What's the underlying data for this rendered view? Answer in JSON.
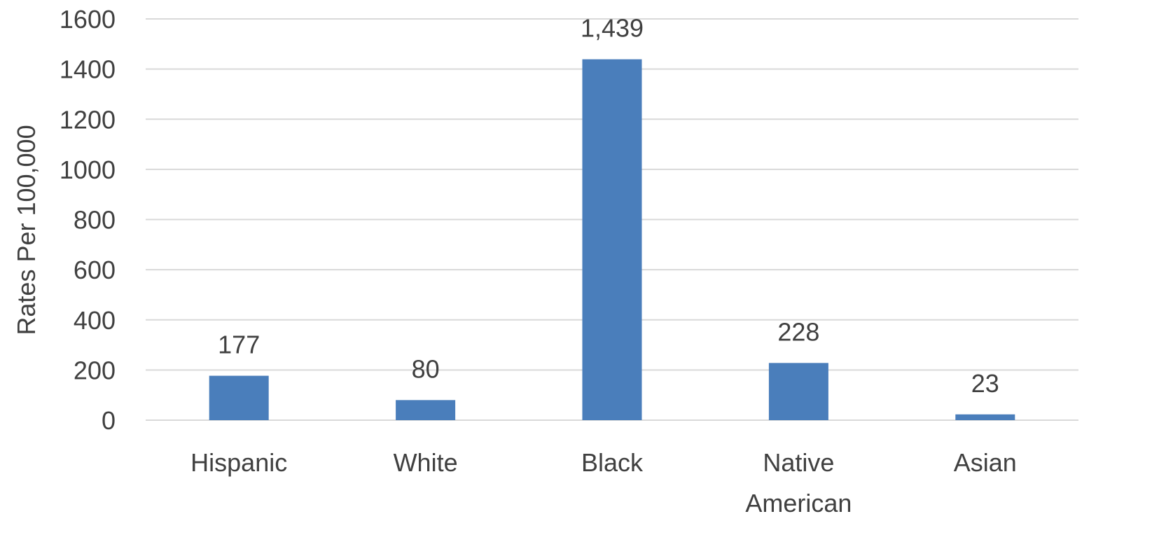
{
  "chart_data": {
    "type": "bar",
    "title": "",
    "xlabel": "",
    "ylabel": "Rates Per 100,000",
    "categories": [
      [
        "Hispanic"
      ],
      [
        "White"
      ],
      [
        "Black"
      ],
      [
        "Native",
        "American"
      ],
      [
        "Asian"
      ]
    ],
    "values": [
      177,
      80,
      1439,
      228,
      23
    ],
    "data_labels": [
      "177",
      "80",
      "1,439",
      "228",
      "23"
    ],
    "ylim": [
      0,
      1600
    ],
    "yticks": [
      0,
      200,
      400,
      600,
      800,
      1000,
      1200,
      1400,
      1600
    ],
    "grid": true,
    "legend": "none",
    "colors": {
      "bar": "#4A7EBB",
      "grid": "#D9D9D9",
      "text": "#404040"
    }
  }
}
